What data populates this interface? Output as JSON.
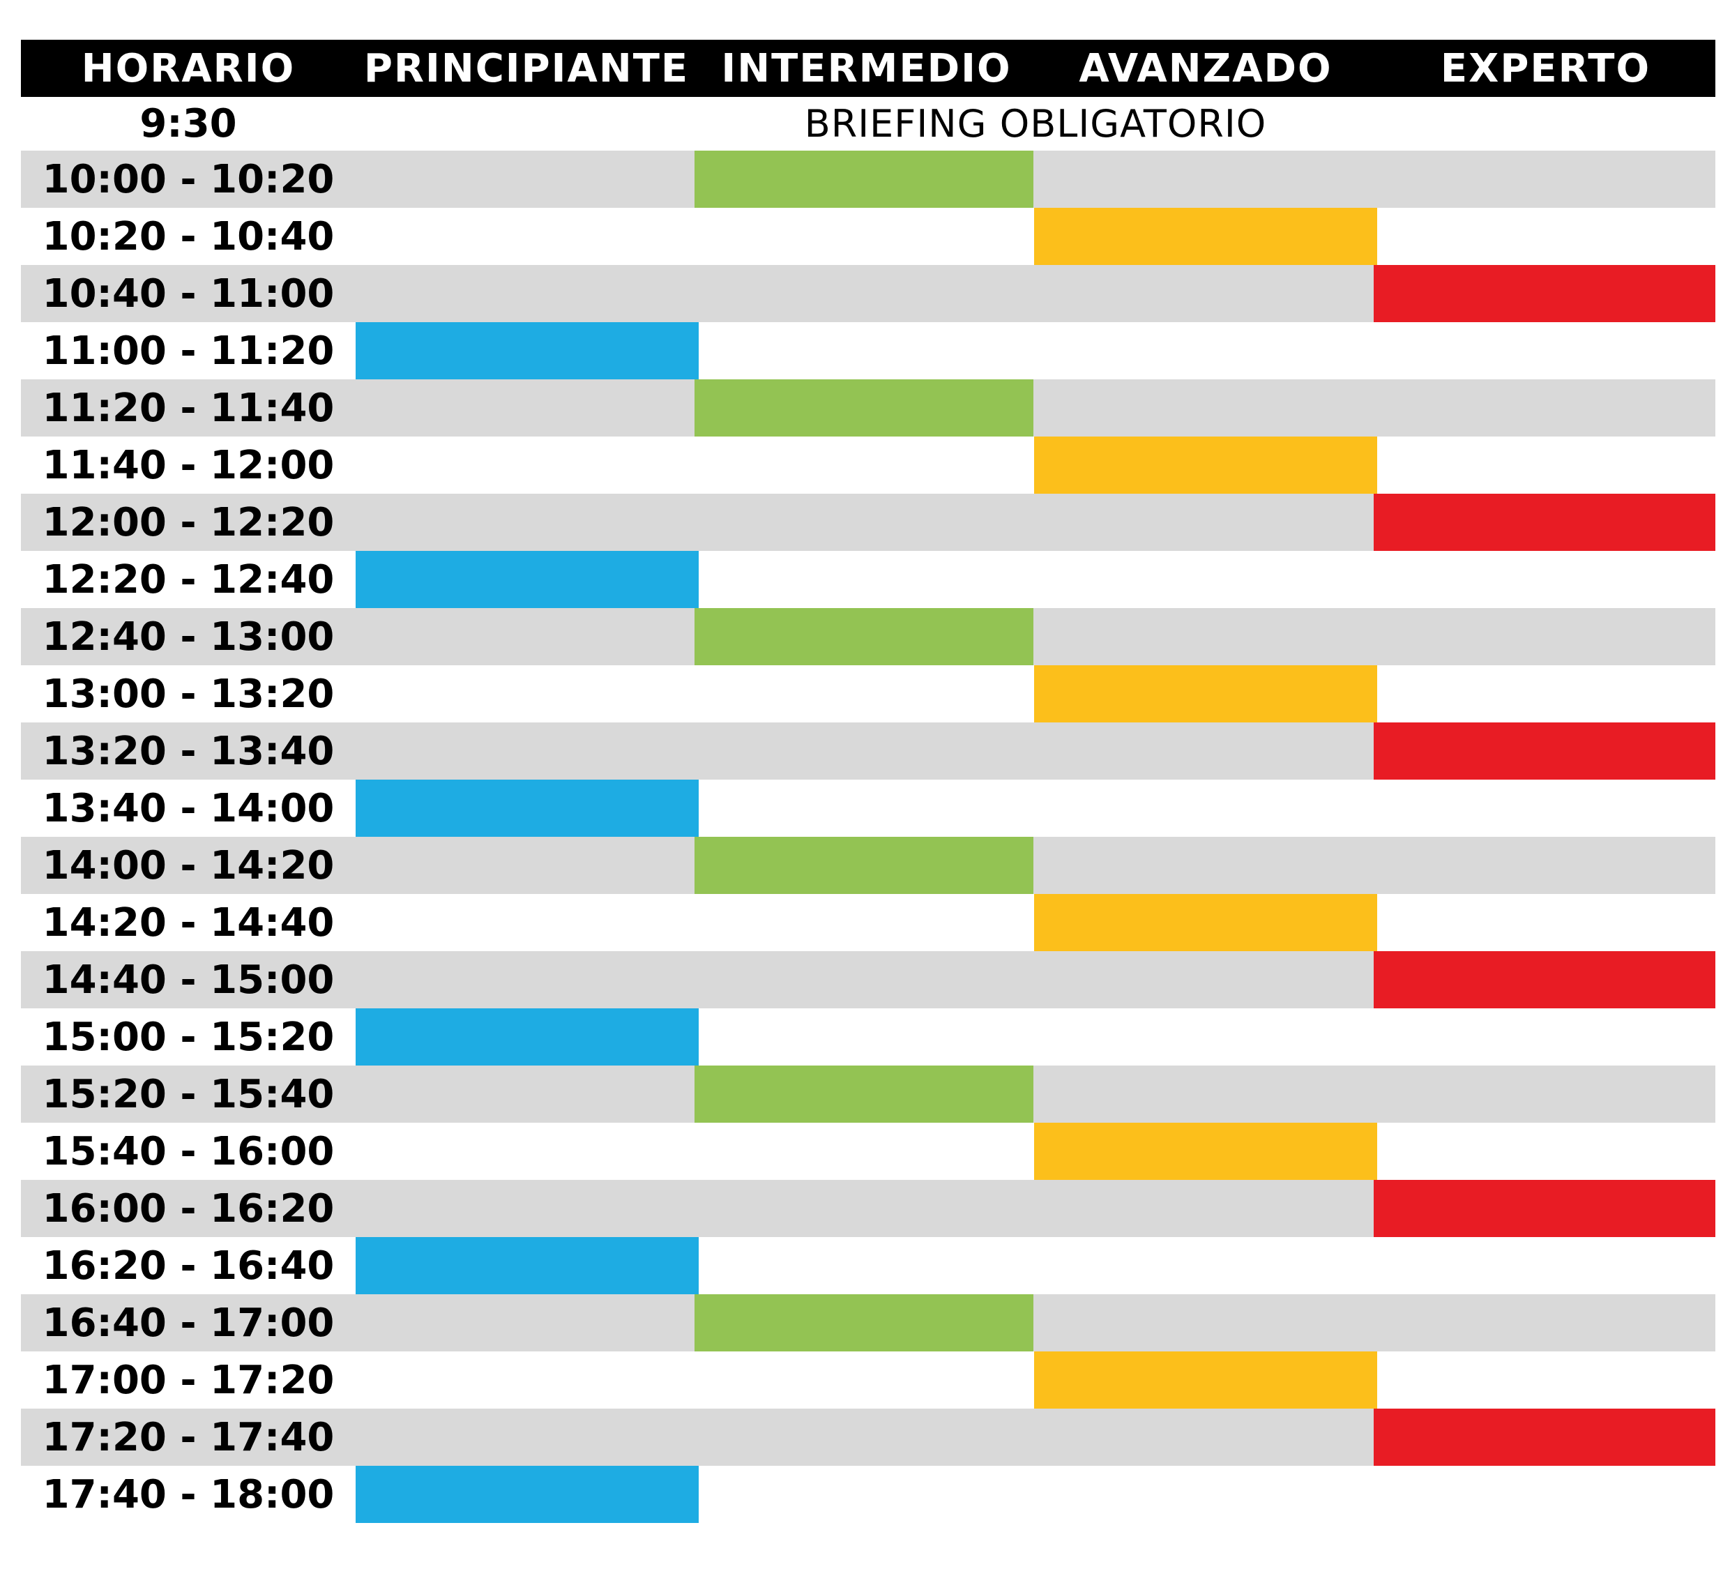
{
  "header": {
    "columns": [
      "HORARIO",
      "PRINCIPIANTE",
      "INTERMEDIO",
      "AVANZADO",
      "EXPERTO"
    ]
  },
  "briefing": {
    "time": "9:30",
    "label": "BRIEFING OBLIGATORIO"
  },
  "colors": {
    "header_bg": "#000000",
    "row_gray": "#d9d9d9",
    "row_white": "#ffffff",
    "principiante": "#1eace3",
    "intermedio": "#93c353",
    "avanzado": "#fcbf1b",
    "experto": "#e81c24"
  },
  "slots": [
    {
      "time": "10:00 - 10:20",
      "level": "intermedio"
    },
    {
      "time": "10:20 - 10:40",
      "level": "avanzado"
    },
    {
      "time": "10:40 - 11:00",
      "level": "experto"
    },
    {
      "time": "11:00 - 11:20",
      "level": "principiante"
    },
    {
      "time": "11:20 - 11:40",
      "level": "intermedio"
    },
    {
      "time": "11:40 - 12:00",
      "level": "avanzado"
    },
    {
      "time": "12:00 - 12:20",
      "level": "experto"
    },
    {
      "time": "12:20 - 12:40",
      "level": "principiante"
    },
    {
      "time": "12:40 - 13:00",
      "level": "intermedio"
    },
    {
      "time": "13:00 - 13:20",
      "level": "avanzado"
    },
    {
      "time": "13:20 - 13:40",
      "level": "experto"
    },
    {
      "time": "13:40 - 14:00",
      "level": "principiante"
    },
    {
      "time": "14:00 - 14:20",
      "level": "intermedio"
    },
    {
      "time": "14:20 - 14:40",
      "level": "avanzado"
    },
    {
      "time": "14:40 - 15:00",
      "level": "experto"
    },
    {
      "time": "15:00 - 15:20",
      "level": "principiante"
    },
    {
      "time": "15:20 - 15:40",
      "level": "intermedio"
    },
    {
      "time": "15:40 - 16:00",
      "level": "avanzado"
    },
    {
      "time": "16:00 - 16:20",
      "level": "experto"
    },
    {
      "time": "16:20 - 16:40",
      "level": "principiante"
    },
    {
      "time": "16:40 - 17:00",
      "level": "intermedio"
    },
    {
      "time": "17:00 - 17:20",
      "level": "avanzado"
    },
    {
      "time": "17:20 - 17:40",
      "level": "experto"
    },
    {
      "time": "17:40 - 18:00",
      "level": "principiante"
    }
  ]
}
